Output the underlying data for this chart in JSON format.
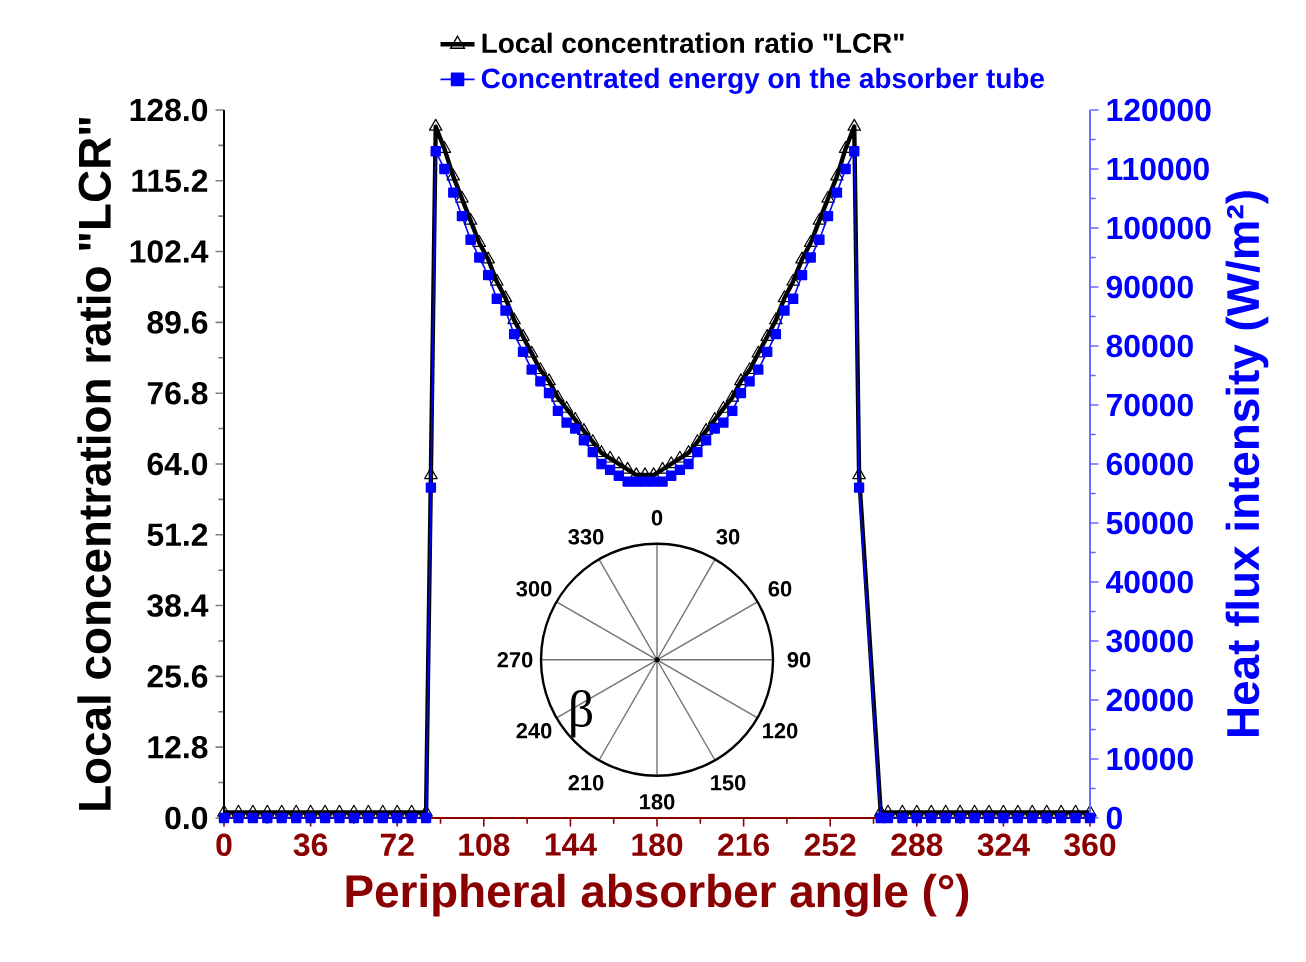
{
  "chart_data": {
    "type": "line",
    "xlabel": "Peripheral absorber angle (°)",
    "ylabel": "Local concentration ratio \"LCR\"",
    "y2label": "Heat flux intensity (W/m²)",
    "xlim": [
      0,
      360
    ],
    "xticks": [
      0,
      36,
      72,
      108,
      144,
      180,
      216,
      252,
      288,
      324,
      360
    ],
    "ylim": [
      0,
      128
    ],
    "yticks": [
      {
        "value": 0,
        "label": "0.0"
      },
      12.8,
      25.6,
      38.4,
      51.2,
      {
        "value": 64,
        "label": "64.0"
      },
      76.8,
      89.6,
      102.4,
      115.2,
      {
        "value": 128,
        "label": "128.0"
      }
    ],
    "y2lim": [
      0,
      120000
    ],
    "y2ticks": [
      0,
      10000,
      20000,
      30000,
      40000,
      50000,
      60000,
      70000,
      80000,
      90000,
      100000,
      110000,
      120000
    ],
    "x": [
      0,
      6,
      12,
      18,
      24,
      30,
      36,
      42,
      48,
      54,
      60,
      66,
      72,
      78,
      84,
      86,
      88,
      91.6,
      95.3,
      98.9,
      102.5,
      106.1,
      109.8,
      113.4,
      117,
      120.6,
      124.3,
      127.9,
      131.5,
      135.1,
      138.8,
      142.4,
      146,
      149.6,
      153.3,
      156.9,
      160.5,
      164.1,
      167.8,
      171.4,
      175,
      178.6,
      182.3,
      185.9,
      189.5,
      193.1,
      196.8,
      200.4,
      204,
      207.6,
      211.3,
      214.9,
      218.5,
      222.1,
      225.8,
      229.4,
      233,
      236.6,
      240.3,
      243.9,
      247.5,
      251.1,
      254.8,
      258.4,
      262,
      264,
      273,
      276,
      282,
      288,
      294,
      300,
      306,
      312,
      318,
      324,
      330,
      336,
      342,
      348,
      354,
      360
    ],
    "series": [
      {
        "name": "Local concentration ratio \"LCR\"",
        "color": "#000000",
        "marker": "triangle",
        "line_style": "solid",
        "axis": "y",
        "values": [
          1,
          1,
          1,
          1,
          1,
          1,
          1,
          1,
          1,
          1,
          1,
          1,
          1,
          1,
          1,
          62,
          125,
          121,
          116,
          112,
          108,
          104,
          101,
          97,
          94,
          90,
          87,
          84,
          81,
          79,
          76,
          74,
          72,
          70,
          68,
          66,
          65,
          64,
          63,
          62,
          62,
          62,
          63,
          64,
          65,
          66,
          68,
          70,
          72,
          74,
          76,
          79,
          81,
          84,
          87,
          90,
          94,
          97,
          101,
          104,
          108,
          112,
          116,
          121,
          125,
          62,
          1,
          1,
          1,
          1,
          1,
          1,
          1,
          1,
          1,
          1,
          1,
          1,
          1,
          1,
          1,
          1
        ]
      },
      {
        "name": "Concentrated energy on the absorber tube",
        "color": "#0000ff",
        "marker": "square",
        "line_style": "solid",
        "axis": "y2",
        "values": [
          0,
          0,
          0,
          0,
          0,
          0,
          0,
          0,
          0,
          0,
          0,
          0,
          0,
          0,
          0,
          56000,
          113000,
          110000,
          106000,
          102000,
          98000,
          95000,
          92000,
          88000,
          86000,
          82000,
          79000,
          76000,
          74000,
          72000,
          69000,
          67000,
          66000,
          64000,
          62000,
          60000,
          59000,
          58000,
          57000,
          57000,
          57000,
          57000,
          57000,
          58000,
          59000,
          60000,
          62000,
          64000,
          66000,
          67000,
          69000,
          72000,
          74000,
          76000,
          79000,
          82000,
          86000,
          88000,
          92000,
          95000,
          98000,
          102000,
          106000,
          110000,
          113000,
          56000,
          0,
          0,
          0,
          0,
          0,
          0,
          0,
          0,
          0,
          0,
          0,
          0,
          0,
          0,
          0,
          0
        ]
      }
    ],
    "legend": "top",
    "grid": false,
    "annotations": [
      "0",
      "30",
      "60",
      "90",
      "120",
      "150",
      "180",
      "210",
      "240",
      "270",
      "300",
      "330",
      "β"
    ]
  }
}
